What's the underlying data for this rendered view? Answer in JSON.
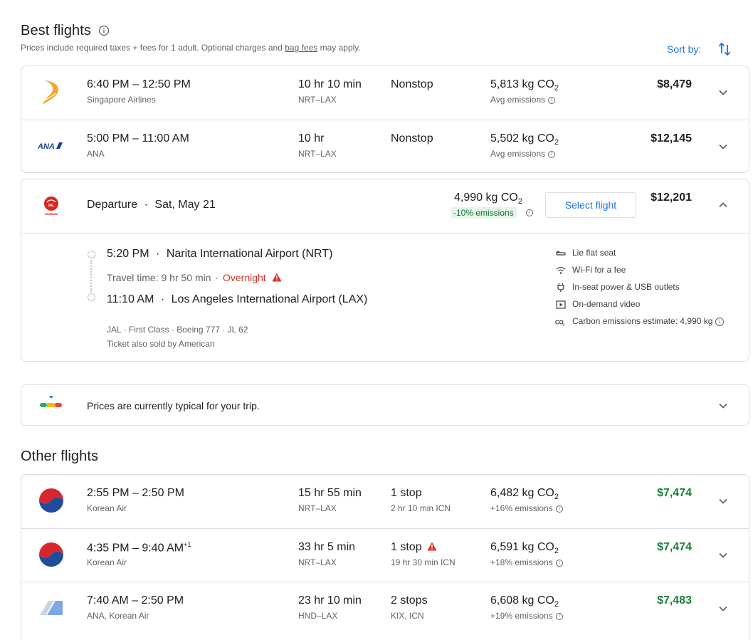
{
  "best": {
    "title": "Best flights",
    "subtitle_prefix": "Prices include required taxes + fees for 1 adult. Optional charges and ",
    "subtitle_link": "bag fees",
    "subtitle_suffix": " may apply.",
    "sort_label": "Sort by:"
  },
  "flights_best": [
    {
      "airline": "Singapore Airlines",
      "times": "6:40 PM – 12:50 PM",
      "duration": "10 hr 10 min",
      "route": "NRT–LAX",
      "stops": "Nonstop",
      "co2": "5,813 kg CO",
      "emissions": "Avg emissions",
      "price": "$8,479"
    },
    {
      "airline": "ANA",
      "times": "5:00 PM – 11:00 AM",
      "duration": "10 hr",
      "route": "NRT–LAX",
      "stops": "Nonstop",
      "co2": "5,502 kg CO",
      "emissions": "Avg emissions",
      "price": "$12,145"
    }
  ],
  "expanded": {
    "departure_label": "Departure",
    "date": "Sat, May 21",
    "co2": "4,990 kg CO",
    "emissions_badge": "-10% emissions",
    "select_label": "Select flight",
    "price": "$12,201",
    "dep_time": "5:20 PM",
    "dep_airport": "Narita International Airport (NRT)",
    "travel_time": "Travel time: 9 hr 50 min",
    "overnight": "Overnight",
    "arr_time": "11:10 AM",
    "arr_airport": "Los Angeles International Airport (LAX)",
    "details": "JAL · First Class · Boeing 777 · JL 62",
    "also_sold": "Ticket also sold by American",
    "amenities": [
      {
        "icon": "lie-flat-seat-icon",
        "label": "Lie flat seat"
      },
      {
        "icon": "wifi-icon",
        "label": "Wi-Fi for a fee"
      },
      {
        "icon": "power-plug-icon",
        "label": "In-seat power & USB outlets"
      },
      {
        "icon": "video-icon",
        "label": "On-demand video"
      },
      {
        "icon": "co2-icon",
        "label": "Carbon emissions estimate: 4,990 kg"
      }
    ]
  },
  "price_insight": {
    "text": "Prices are currently typical for your trip."
  },
  "other": {
    "title": "Other flights"
  },
  "flights_other": [
    {
      "airline": "Korean Air",
      "times": "2:55 PM – 2:50 PM",
      "plusday": "",
      "duration": "15 hr 55 min",
      "route": "NRT–LAX",
      "stops": "1 stop",
      "layover": "2 hr 10 min ICN",
      "co2": "6,482 kg CO",
      "emissions": "+16% emissions",
      "price": "$7,474"
    },
    {
      "airline": "Korean Air",
      "times": "4:35 PM – 9:40 AM",
      "plusday": "+1",
      "duration": "33 hr 5 min",
      "route": "NRT–LAX",
      "stops": "1 stop",
      "layover": "19 hr 30 min ICN",
      "co2": "6,591 kg CO",
      "emissions": "+18% emissions",
      "price": "$7,474"
    },
    {
      "airline": "ANA, Korean Air",
      "times": "7:40 AM – 2:50 PM",
      "plusday": "",
      "duration": "23 hr 10 min",
      "route": "HND–LAX",
      "stops": "2 stops",
      "layover": "KIX, ICN",
      "co2": "6,608 kg CO",
      "emissions": "+19% emissions",
      "price": "$7,483"
    }
  ],
  "colors": {
    "accent": "#1a73e8",
    "green_price": "#188038",
    "warning": "#d93025",
    "border": "#dadce0"
  }
}
